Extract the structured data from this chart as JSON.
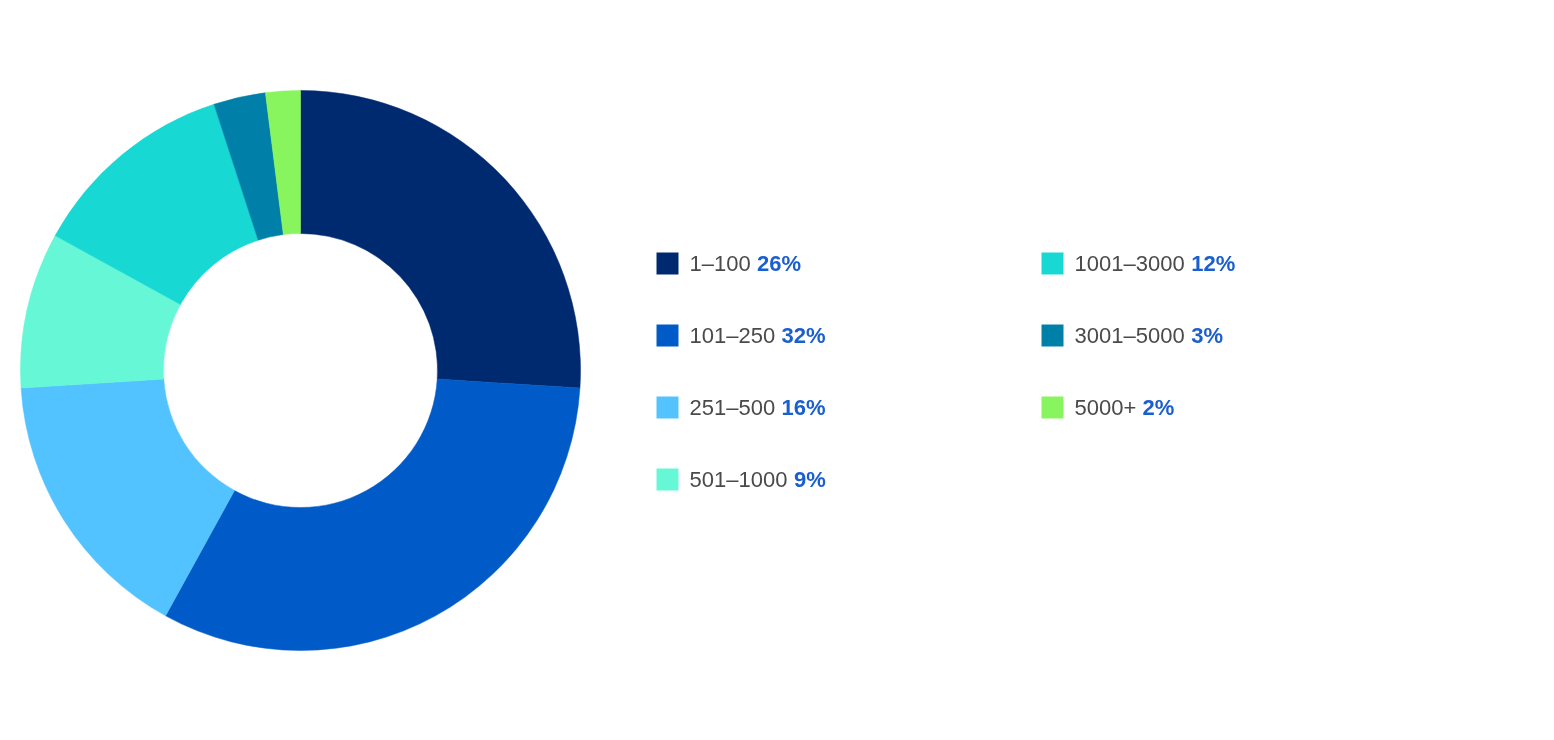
{
  "chart_data": {
    "type": "donut",
    "categories": [
      "1–100",
      "101–250",
      "251–500",
      "501–1000",
      "1001–3000",
      "3001–5000",
      "5000+"
    ],
    "values": [
      26,
      32,
      16,
      9,
      12,
      3,
      2
    ],
    "value_labels": [
      "26%",
      "32%",
      "16%",
      "9%",
      "12%",
      "3%",
      "2%"
    ],
    "colors": [
      "#002a70",
      "#005bc8",
      "#52c3ff",
      "#66f7d6",
      "#18d8d4",
      "#0080a8",
      "#89f55e"
    ],
    "legend": "right"
  }
}
